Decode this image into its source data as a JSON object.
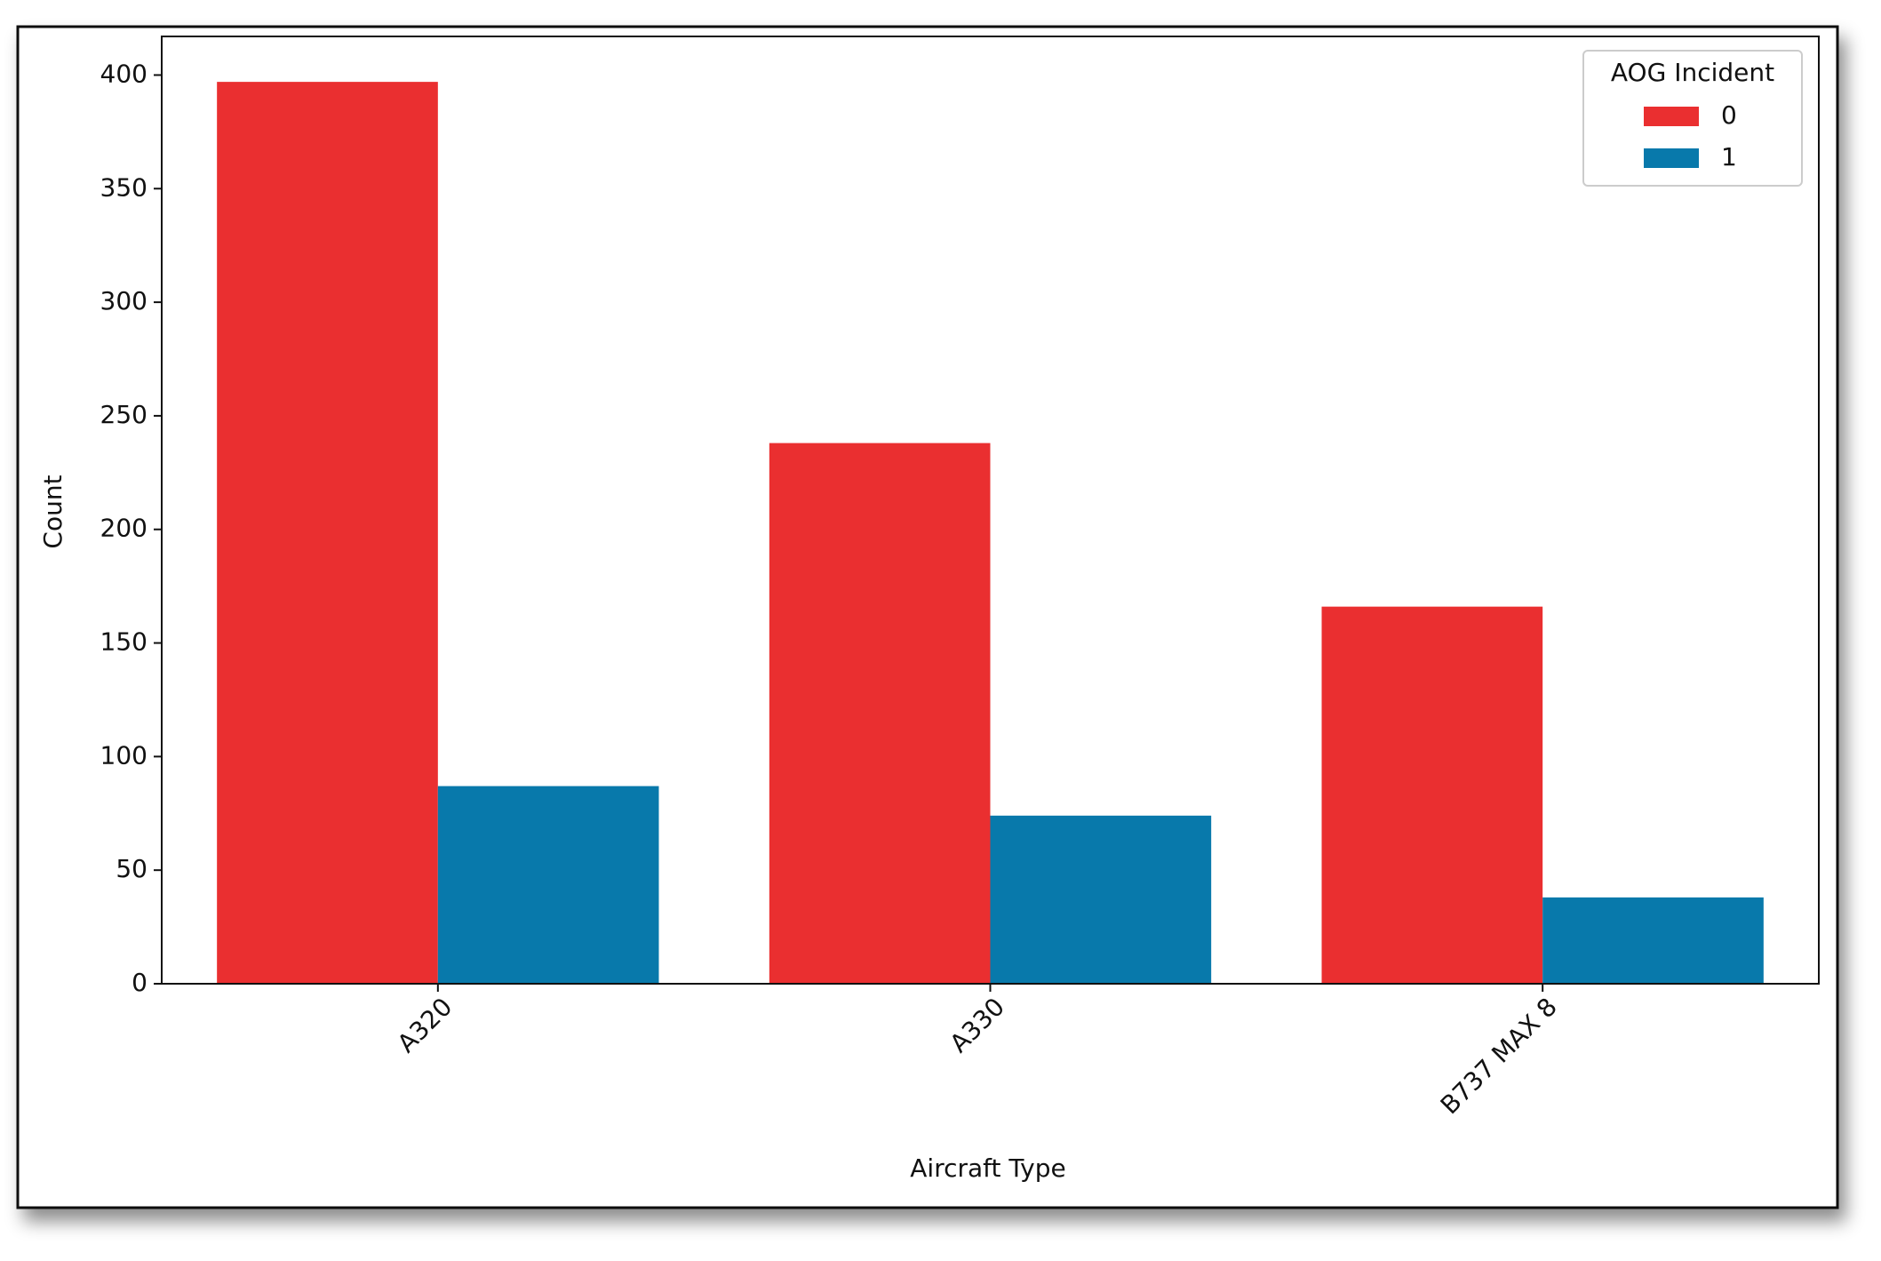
{
  "chart_data": {
    "type": "bar",
    "x_label": "Aircraft Type",
    "y_label": "Count",
    "categories": [
      "A320",
      "A330",
      "B737 MAX 8"
    ],
    "series": [
      {
        "name": "0",
        "color": "#ea2f30",
        "values": [
          397,
          238,
          166
        ]
      },
      {
        "name": "1",
        "color": "#0879ab",
        "values": [
          87,
          74,
          38
        ]
      }
    ],
    "ylim": [
      0,
      417
    ],
    "yticks": [
      0,
      50,
      100,
      150,
      200,
      250,
      300,
      350,
      400
    ],
    "legend": {
      "title": "AOG Incident",
      "loc": "upper right"
    }
  }
}
